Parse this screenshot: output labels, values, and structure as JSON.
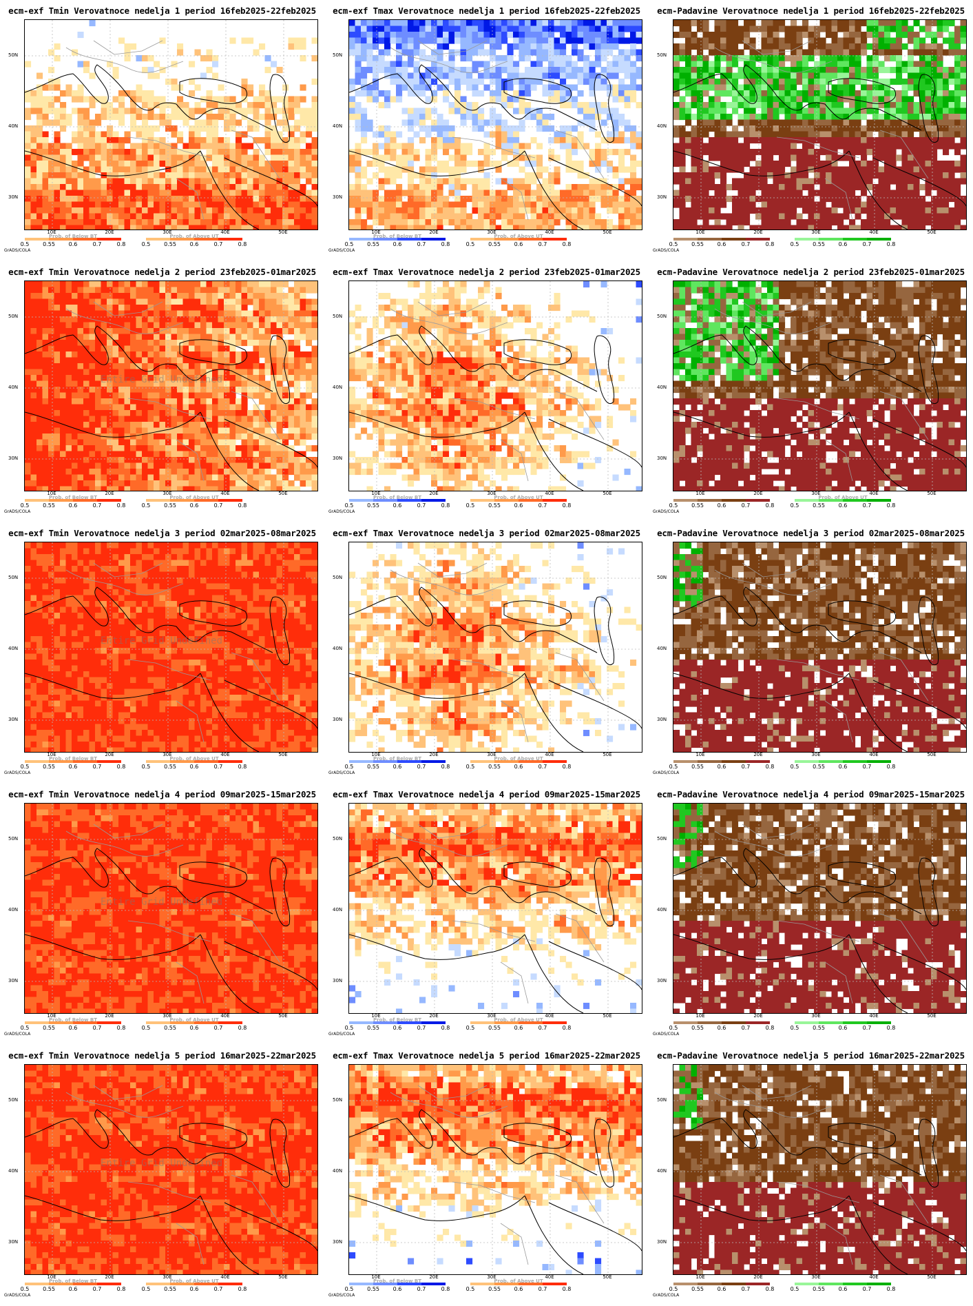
{
  "grads_label": "GrADS/COLA",
  "ticks": {
    "lat": [
      "50N",
      "40N",
      "30N"
    ],
    "lon": [
      "10E",
      "20E",
      "30E",
      "40E",
      "50E"
    ]
  },
  "legend": {
    "temp_below": "Prob. of Below BT",
    "temp_above": "Prob. of Above UT",
    "levels": [
      "0.5",
      "0.55",
      "0.6",
      "0.7",
      "0.8"
    ]
  },
  "colors": {
    "blue": [
      "#c6dbff",
      "#96b8ff",
      "#6e8dff",
      "#2d4bff",
      "#0019e6"
    ],
    "orange": [
      "#ffe8a8",
      "#ffc27a",
      "#ff9a4a",
      "#ff6a28",
      "#ff2d0a"
    ],
    "brown": [
      "#d9b99b",
      "#b8906c",
      "#96663f",
      "#7a3f12",
      "#9b2626"
    ],
    "green": [
      "#ccffcc",
      "#99f599",
      "#5fe65f",
      "#20c820",
      "#00b000"
    ]
  },
  "panels": [
    {
      "title": "ecm-exf Tmin Verovatnoce nedelja 1 period 16feb2025-22feb2025",
      "var": "tmin",
      "below_title": "Prob. of Below BT",
      "above_title": "Prob. of Above UT",
      "mean": 0.55,
      "seed": 11,
      "gradient": "south",
      "overlay": ""
    },
    {
      "title": "ecm-exf Tmax Verovatnoce nedelja 1 period 16feb2025-22feb2025",
      "var": "tmax",
      "below_title": "Prob. of Below BT",
      "above_title": "Prob. of Above UT",
      "mean": 0.35,
      "seed": 12,
      "gradient": "northcold",
      "overlay": ""
    },
    {
      "title": "ecm-Padavine Verovatnoce nedelja 1 period 16feb2025-22feb2025",
      "var": "precip",
      "below_title": "",
      "above_title": "",
      "mean": 0.6,
      "seed": 13,
      "gradient": "wetband",
      "overlay": ""
    },
    {
      "title": "ecm-exf Tmin Verovatnoce nedelja 2 period 23feb2025-01mar2025",
      "var": "tmin",
      "below_title": "Prob. of Below BT",
      "above_title": "Prob. of Above UT",
      "mean": 0.85,
      "seed": 21,
      "gradient": "west",
      "overlay": "Entire Grid Undefined"
    },
    {
      "title": "ecm-exf Tmax Verovatnoce nedelja 2 period 23feb2025-01mar2025",
      "var": "tmax",
      "below_title": "Prob. of Below BT",
      "above_title": "Prob. of Above UT",
      "mean": 0.5,
      "seed": 22,
      "gradient": "central",
      "overlay": ""
    },
    {
      "title": "ecm-Padavine Verovatnoce nedelja 2 period 23feb2025-01mar2025",
      "var": "precip",
      "below_title": "",
      "above_title": "Prob. of Above UT",
      "mean": 0.75,
      "seed": 23,
      "gradient": "wetnw",
      "overlay": ""
    },
    {
      "title": "ecm-exf Tmin Verovatnoce nedelja 3 period 02mar2025-08mar2025",
      "var": "tmin",
      "below_title": "Prob. of Below BT",
      "above_title": "Prob. of Above UT",
      "mean": 0.9,
      "seed": 31,
      "gradient": "full",
      "overlay": "Entire Grid Undefined"
    },
    {
      "title": "ecm-exf Tmax Verovatnoce nedelja 3 period 02mar2025-08mar2025",
      "var": "tmax",
      "below_title": "Prob. of Below BT",
      "above_title": "Prob. of Above UT",
      "mean": 0.45,
      "seed": 32,
      "gradient": "central",
      "overlay": ""
    },
    {
      "title": "ecm-Padavine Verovatnoce nedelja 3 period 02mar2025-08mar2025",
      "var": "precip",
      "below_title": "",
      "above_title": "",
      "mean": 0.85,
      "seed": 33,
      "gradient": "dry",
      "overlay": ""
    },
    {
      "title": "ecm-exf Tmin Verovatnoce nedelja 4 period 09mar2025-15mar2025",
      "var": "tmin",
      "below_title": "Prob. of Below BT",
      "above_title": "Prob. of Above UT",
      "mean": 0.95,
      "seed": 41,
      "gradient": "full",
      "overlay": "Entire Grid Undefined"
    },
    {
      "title": "ecm-exf Tmax Verovatnoce nedelja 4 period 09mar2025-15mar2025",
      "var": "tmax",
      "below_title": "Prob. of Below BT",
      "above_title": "Prob. of Above UT",
      "mean": 0.45,
      "seed": 42,
      "gradient": "northband",
      "overlay": ""
    },
    {
      "title": "ecm-Padavine Verovatnoce nedelja 4 period 09mar2025-15mar2025",
      "var": "precip",
      "below_title": "",
      "above_title": "",
      "mean": 0.9,
      "seed": 43,
      "gradient": "dry",
      "overlay": ""
    },
    {
      "title": "ecm-exf Tmin Verovatnoce nedelja 5 period 16mar2025-22mar2025",
      "var": "tmin",
      "below_title": "Prob. of Below BT",
      "above_title": "Prob. of Above UT",
      "mean": 0.95,
      "seed": 51,
      "gradient": "full",
      "overlay": "Entire Grid Undefined"
    },
    {
      "title": "ecm-exf Tmax Verovatnoce nedelja 5 period 16mar2025-22mar2025",
      "var": "tmax",
      "below_title": "Prob. of Below BT",
      "above_title": "Prob. of Above UT",
      "mean": 0.5,
      "seed": 52,
      "gradient": "northband",
      "overlay": ""
    },
    {
      "title": "ecm-Padavine Verovatnoce nedelja 5 period 16mar2025-22mar2025",
      "var": "precip",
      "below_title": "",
      "above_title": "",
      "mean": 0.9,
      "seed": 53,
      "gradient": "dry",
      "overlay": ""
    }
  ]
}
